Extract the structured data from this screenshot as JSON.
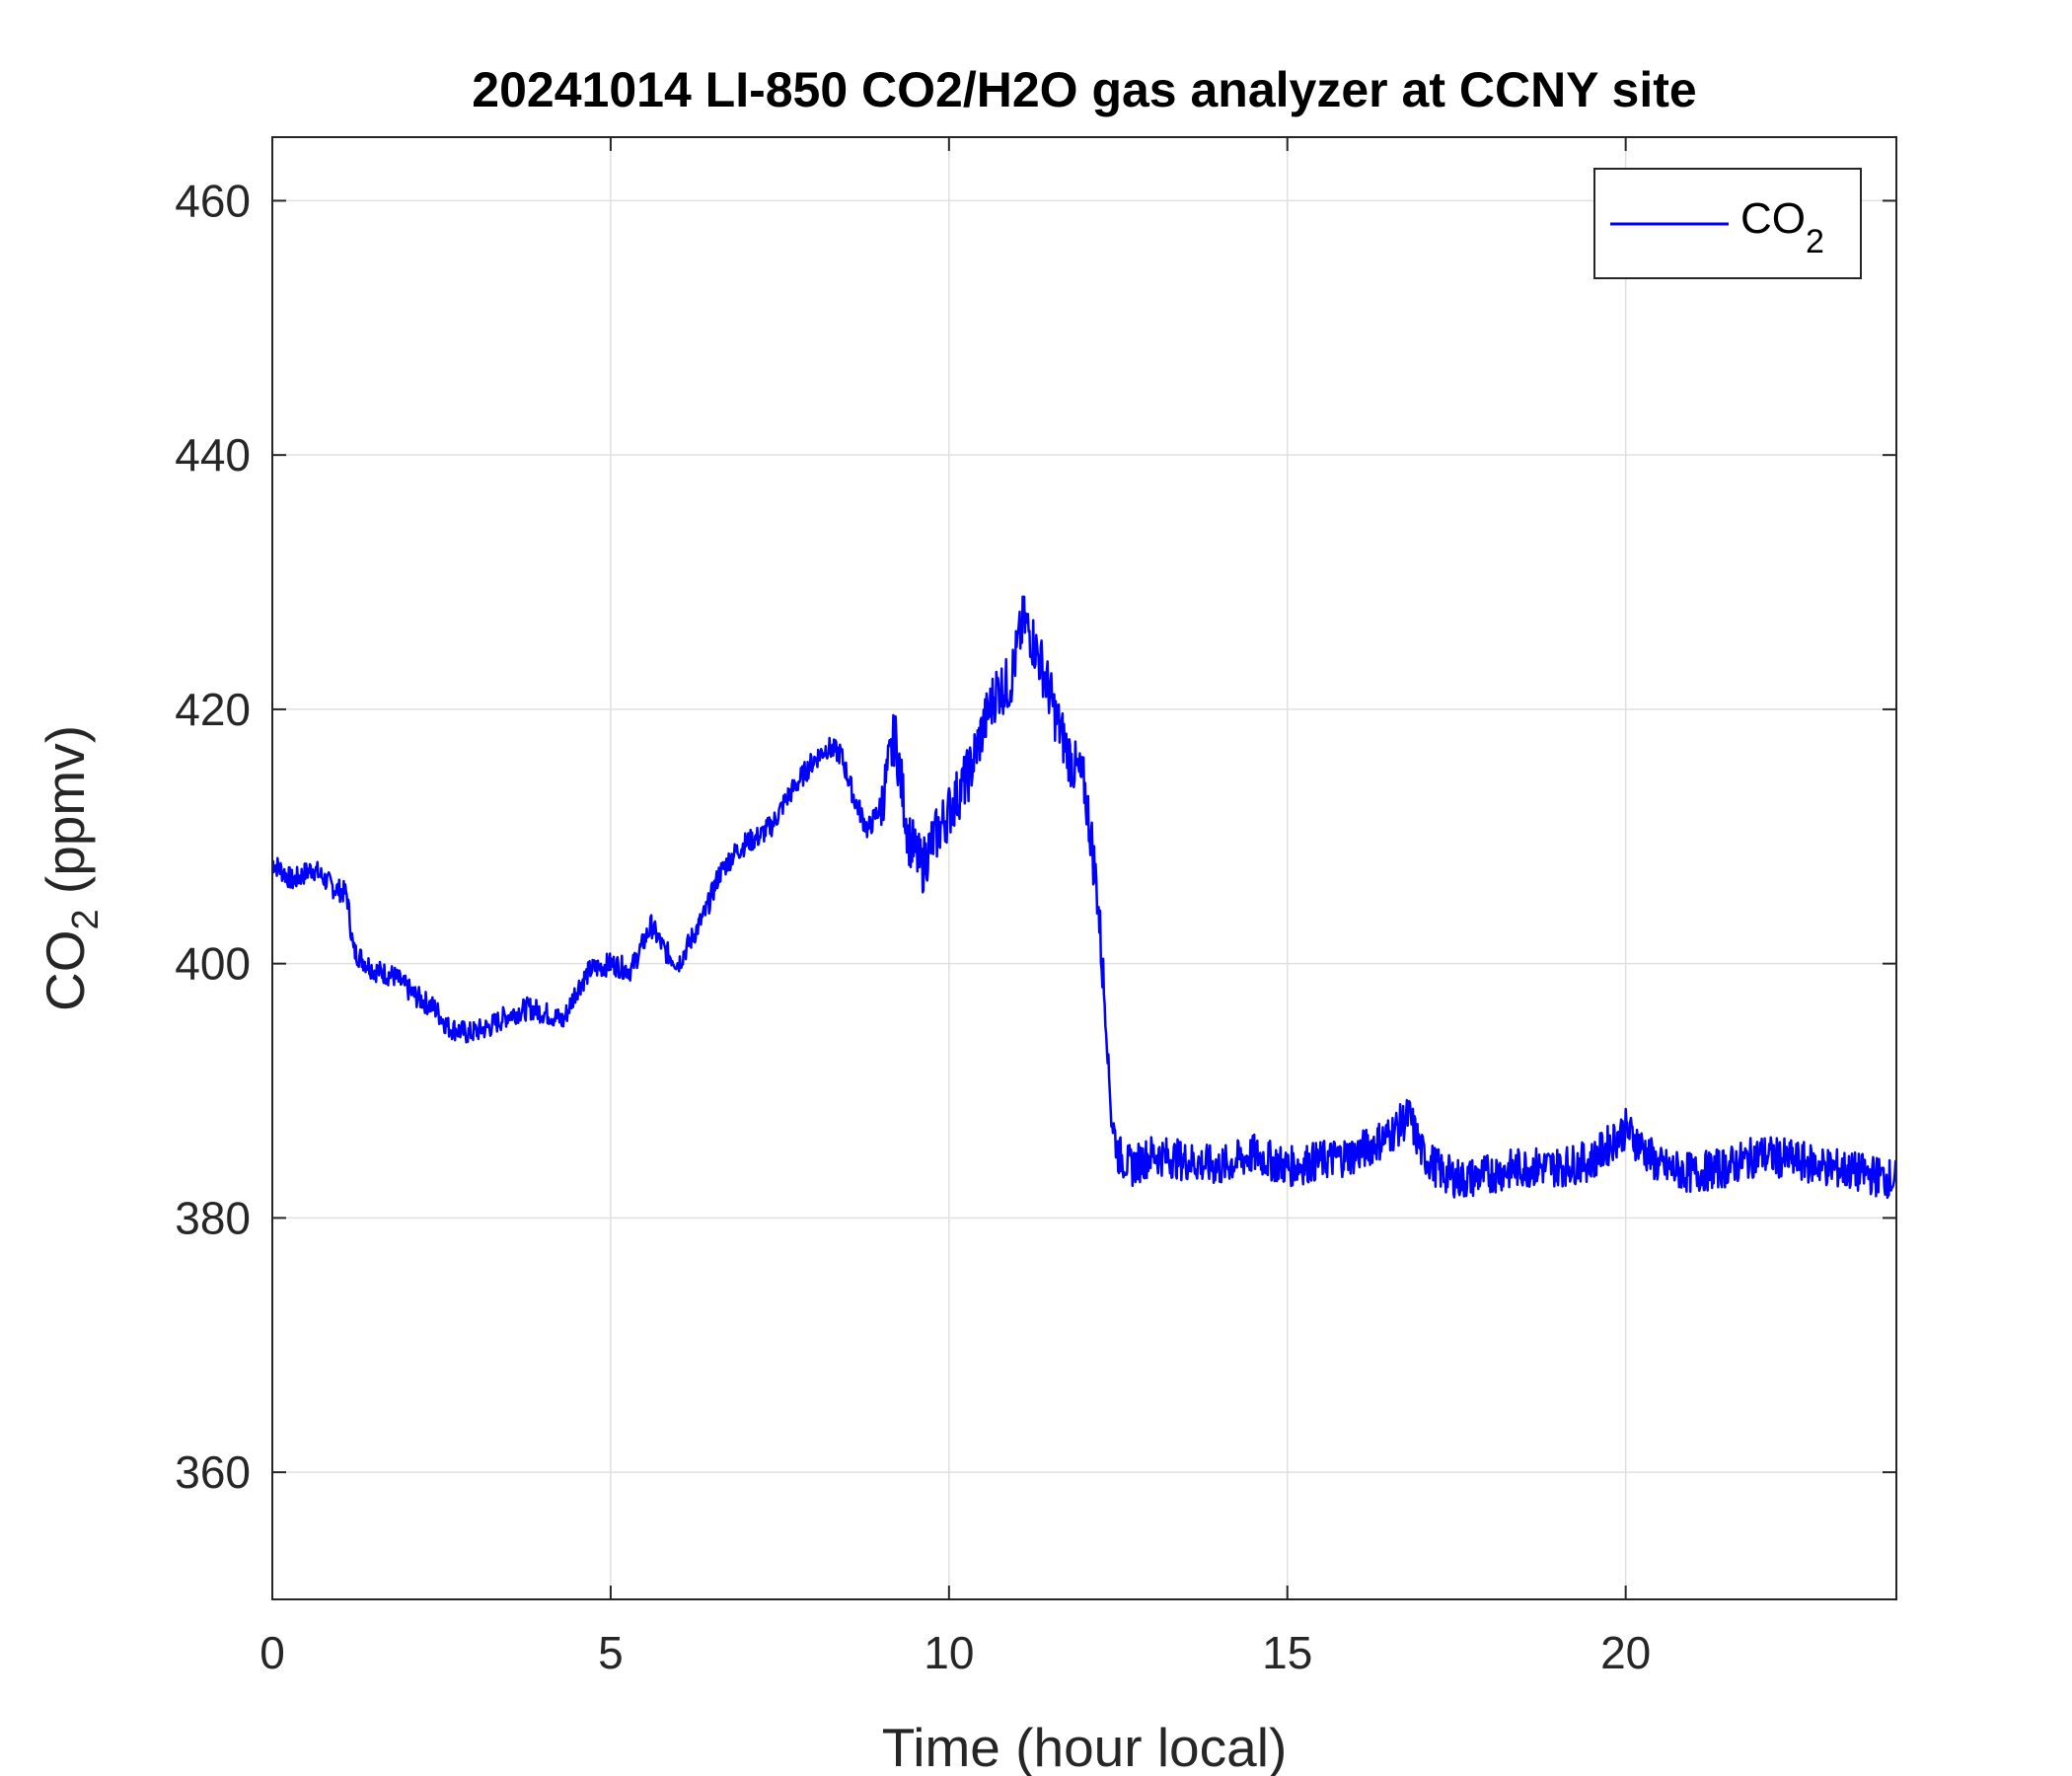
{
  "chart_data": {
    "type": "line",
    "title": "20241014 LI-850 CO2/H2O gas analyzer at CCNY site",
    "xlabel": "Time (hour local)",
    "ylabel_main": "CO",
    "ylabel_sub": "2",
    "ylabel_unit": " (ppmv)",
    "xlim": [
      0,
      24
    ],
    "ylim": [
      350,
      465
    ],
    "xticks": [
      0,
      5,
      10,
      15,
      20
    ],
    "yticks": [
      360,
      380,
      400,
      420,
      440,
      460
    ],
    "grid": true,
    "legend": {
      "position": "top-right",
      "label_main": "CO",
      "label_sub": "2"
    },
    "series": [
      {
        "name": "CO2",
        "color": "#0000ff",
        "x": [
          0,
          0.3,
          0.6,
          0.9,
          1.1,
          1.2,
          1.5,
          1.8,
          2.1,
          2.4,
          2.6,
          2.9,
          3.2,
          3.5,
          3.8,
          4.1,
          4.3,
          4.5,
          4.7,
          5.0,
          5.3,
          5.6,
          5.8,
          6.0,
          6.2,
          6.4,
          6.6,
          6.8,
          7.0,
          7.2,
          7.4,
          7.6,
          7.8,
          8.0,
          8.2,
          8.4,
          8.6,
          8.8,
          9.0,
          9.2,
          9.4,
          9.6,
          9.7,
          9.9,
          10.1,
          10.3,
          10.5,
          10.7,
          10.9,
          11.1,
          11.2,
          11.4,
          11.6,
          11.8,
          12.0,
          12.1,
          12.2,
          12.3,
          12.4,
          12.5,
          12.7,
          13.0,
          13.5,
          14.0,
          14.5,
          15.0,
          15.5,
          16.0,
          16.5,
          16.8,
          17.0,
          17.3,
          17.6,
          18.0,
          18.5,
          19.0,
          19.5,
          20.0,
          20.5,
          21.0,
          21.5,
          22.0,
          22.5,
          23.0,
          23.5,
          24.0
        ],
        "y": [
          408,
          406.5,
          407.5,
          406,
          405.5,
          401,
          399.5,
          399,
          397.5,
          396.5,
          395,
          394.5,
          395,
          396,
          396.5,
          396,
          395.5,
          398,
          399.5,
          400,
          399.5,
          403,
          401,
          400,
          402,
          404,
          407,
          408.5,
          409.5,
          410,
          411,
          413,
          414.5,
          416,
          417,
          416.5,
          413,
          410.5,
          412.5,
          418,
          410,
          407.5,
          409,
          411,
          413,
          415,
          418.5,
          421.5,
          422,
          427,
          426,
          423,
          419,
          416,
          414,
          410,
          405,
          397,
          388,
          385,
          384,
          385,
          384.5,
          384,
          385,
          384,
          384.5,
          385,
          386.5,
          388,
          385,
          383.5,
          383,
          383.5,
          384,
          384,
          384.5,
          387,
          384,
          383.5,
          384,
          385,
          384.5,
          384,
          383.5,
          383
        ]
      }
    ]
  }
}
